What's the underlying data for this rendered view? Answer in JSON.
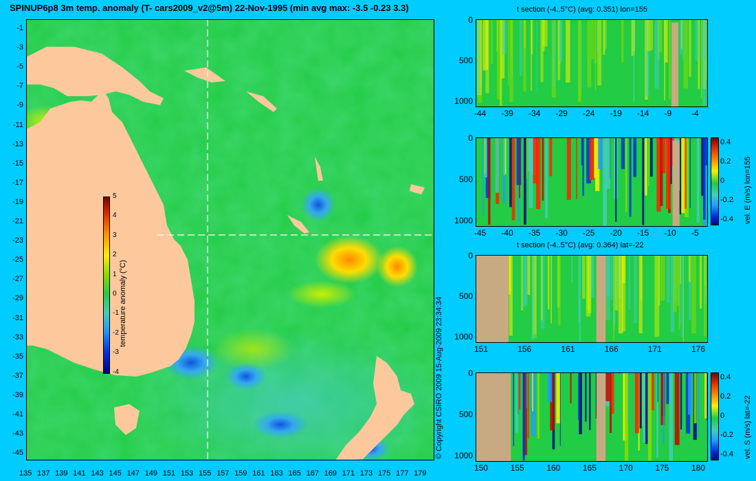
{
  "header": {
    "title": "SPINUP6p8 3m temp. anomaly (T- cars2009_v2@5m) 22-Nov-1995 (min avg max: -3.5 -0.23 3.3)"
  },
  "map": {
    "lat_ticks": [
      "-1",
      "-3",
      "-5",
      "-7",
      "-9",
      "-11",
      "-13",
      "-15",
      "-17",
      "-19",
      "-21",
      "-23",
      "-25",
      "-27",
      "-29",
      "-31",
      "-33",
      "-35",
      "-37",
      "-39",
      "-41",
      "-43",
      "-45"
    ],
    "lon_ticks": [
      "135",
      "137",
      "139",
      "141",
      "143",
      "145",
      "147",
      "149",
      "151",
      "153",
      "155",
      "157",
      "159",
      "161",
      "163",
      "165",
      "167",
      "169",
      "171",
      "173",
      "175",
      "177",
      "179"
    ],
    "colorbar": {
      "label": "temperature anomaly (°C)",
      "ticks": [
        "5",
        "4",
        "3",
        "2",
        "1",
        "0",
        "-1",
        "-2",
        "-3",
        "-4"
      ]
    },
    "section_lon": 155,
    "section_lat": -22
  },
  "panels": [
    {
      "title": "t section (-4..5°C) (avg: 0.351) lon=155",
      "depth_ticks": [
        "0",
        "500",
        "1000"
      ],
      "x_ticks": [
        "-44",
        "-39",
        "-34",
        "-29",
        "-24",
        "-19",
        "-14",
        "-9",
        "-4"
      ]
    },
    {
      "title": "",
      "depth_ticks": [
        "0",
        "500",
        "1000"
      ],
      "x_ticks": [
        "-45",
        "-40",
        "-35",
        "-30",
        "-25",
        "-20",
        "-15",
        "-10",
        "-5"
      ],
      "colorbar_ticks": [
        "0.4",
        "0.2",
        "0",
        "-0.2",
        "-0.4"
      ],
      "side_label": "vel. E (m/s) lon=155"
    },
    {
      "title": "t section (-4..5°C) (avg: 0.364) lat=-22",
      "depth_ticks": [
        "0",
        "500",
        "1000"
      ],
      "x_ticks": [
        "151",
        "156",
        "161",
        "166",
        "171",
        "176"
      ]
    },
    {
      "title": "",
      "depth_ticks": [
        "0",
        "500",
        "1000"
      ],
      "x_ticks": [
        "150",
        "155",
        "160",
        "165",
        "170",
        "175",
        "180"
      ],
      "colorbar_ticks": [
        "0.4",
        "0.2",
        "0",
        "-0.2",
        "-0.4"
      ],
      "side_label": "vel. S (m/s) lat=-22"
    }
  ],
  "copyright": "© Copyright CSIRO 2009  15-Aug-2009 23:34:34",
  "colors": {
    "background": "#00ccff",
    "land": "#fcc89c",
    "section_land": "#c8aa82",
    "ocean_base": "#22cc44"
  }
}
